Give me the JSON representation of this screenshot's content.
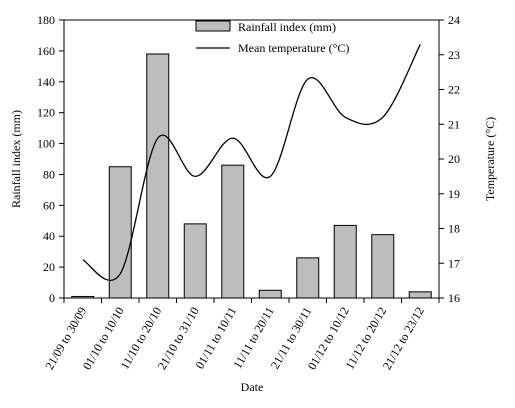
{
  "chart_data": {
    "type": "bar",
    "title": "",
    "xlabel": "Date",
    "ylabel": "Rainfall index (mm)",
    "y2label": "Temperature (°C)",
    "categories": [
      "21/09 to 30/09",
      "01/10 to 10/10",
      "11/10 to 20/10",
      "21/10 to 31/10",
      "01/11 to 10/11",
      "11/11 to 20/11",
      "21/11 to 30/11",
      "01/12 to 10/12",
      "11/12 to 20/12",
      "21/12 to 23/12"
    ],
    "ylim": [
      0,
      180
    ],
    "yticks": [
      "0",
      "20",
      "40",
      "60",
      "80",
      "100",
      "120",
      "140",
      "160",
      "180"
    ],
    "y2lim": [
      16,
      24
    ],
    "y2ticks": [
      "16",
      "17",
      "18",
      "19",
      "20",
      "21",
      "22",
      "23",
      "24"
    ],
    "series": [
      {
        "name": "Rainfall index  (mm)",
        "type": "bar",
        "axis": "left",
        "color": "#bdbdbd",
        "values": [
          1,
          85,
          158,
          48,
          86,
          5,
          26,
          47,
          41,
          4
        ]
      },
      {
        "name": "Mean temperature (°C)",
        "type": "line",
        "axis": "right",
        "color": "#000000",
        "values": [
          17.1,
          16.7,
          20.6,
          19.5,
          20.6,
          19.5,
          22.3,
          21.2,
          21.2,
          23.3
        ]
      }
    ],
    "legend": "top-center",
    "grid": false
  }
}
